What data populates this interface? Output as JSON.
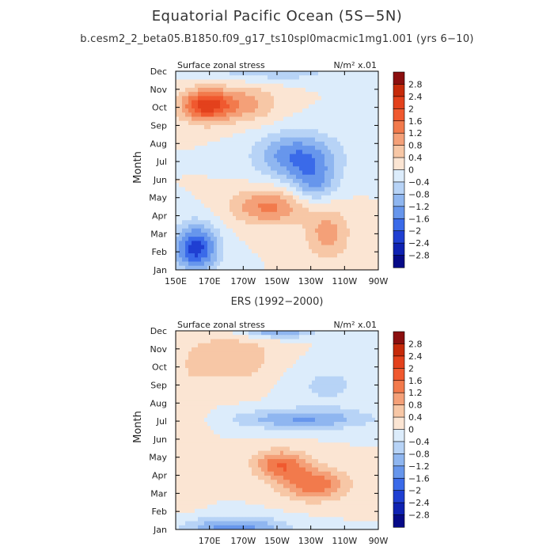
{
  "figure": {
    "title": "Equatorial Pacific Ocean (5S−5N)",
    "subtitle": "b.cesm2_2_beta05.B1850.f09_g17_ts10spl0macmic1mg1.001 (yrs 6−10)"
  },
  "colorbar": {
    "levels": [
      "2.8",
      "2.4",
      "2",
      "1.6",
      "1.2",
      "0.8",
      "0.4",
      "0",
      "−0.4",
      "−0.8",
      "−1.2",
      "−1.6",
      "−2",
      "−2.4",
      "−2.8"
    ],
    "colors": [
      "#8b0f0f",
      "#c62a0a",
      "#e3411c",
      "#f0592f",
      "#f27a4c",
      "#f4a078",
      "#f7c7a6",
      "#fbe5d3",
      "#dcecfb",
      "#b7d3f6",
      "#8fb6f0",
      "#6796ec",
      "#3a6ae9",
      "#1f3fd2",
      "#0f22b2",
      "#060a87"
    ]
  },
  "chart_data": [
    {
      "type": "contour",
      "panel_title": "",
      "left_label": "Surface zonal stress",
      "right_label": "N/m² x.01",
      "xlabel": "",
      "ylabel": "Month",
      "x_ticks": [
        "150E",
        "170E",
        "170W",
        "150W",
        "130W",
        "110W",
        "90W"
      ],
      "y_ticks": [
        "Jan",
        "Feb",
        "Mar",
        "Apr",
        "May",
        "Jun",
        "Jul",
        "Aug",
        "Sep",
        "Oct",
        "Nov",
        "Dec"
      ],
      "xlim": [
        150,
        270
      ],
      "contour_levels": [
        -2.8,
        -2.4,
        -2.0,
        -1.6,
        -1.2,
        -0.8,
        -0.4,
        0,
        0.4,
        0.8,
        1.2,
        1.6,
        2.0,
        2.4,
        2.8
      ],
      "features": [
        {
          "lon": 168,
          "month": 10.1,
          "lon_width": 15,
          "month_width": 0.9,
          "peak": 2.2
        },
        {
          "lon": 193,
          "month": 10.2,
          "lon_width": 18,
          "month_width": 1.0,
          "peak": 0.9
        },
        {
          "lon": 162,
          "month": 2.2,
          "lon_width": 13,
          "month_width": 1.3,
          "peak": -2.2
        },
        {
          "lon": 222,
          "month": 7.3,
          "lon_width": 24,
          "month_width": 1.3,
          "peak": -1.6
        },
        {
          "lon": 232,
          "month": 5.8,
          "lon_width": 13,
          "month_width": 1.1,
          "peak": -1.1
        },
        {
          "lon": 205,
          "month": 11.9,
          "lon_width": 45,
          "month_width": 0.5,
          "peak": -0.6
        },
        {
          "lon": 205,
          "month": 4.5,
          "lon_width": 22,
          "month_width": 1.0,
          "peak": 1.3
        },
        {
          "lon": 240,
          "month": 3.0,
          "lon_width": 13,
          "month_width": 1.4,
          "peak": 1.0
        }
      ]
    },
    {
      "type": "contour",
      "panel_title": "ERS (1992−2000)",
      "left_label": "Surface zonal stress",
      "right_label": "N/m² x.01",
      "xlabel": "",
      "ylabel": "Month",
      "x_ticks": [
        "170E",
        "170W",
        "150W",
        "130W",
        "110W",
        "90W"
      ],
      "y_ticks": [
        "Jan",
        "Feb",
        "Mar",
        "Apr",
        "May",
        "Jun",
        "Jul",
        "Aug",
        "Sep",
        "Oct",
        "Nov",
        "Dec"
      ],
      "xlim": [
        150,
        270
      ],
      "contour_levels": [
        -2.8,
        -2.4,
        -2.0,
        -1.6,
        -1.2,
        -0.8,
        -0.4,
        0,
        0.4,
        0.8,
        1.2,
        1.6,
        2.0,
        2.4,
        2.8
      ],
      "features": [
        {
          "lon": 232,
          "month": 3.5,
          "lon_width": 20,
          "month_width": 0.9,
          "peak": 1.5
        },
        {
          "lon": 212,
          "month": 4.6,
          "lon_width": 16,
          "month_width": 0.8,
          "peak": 1.5
        },
        {
          "lon": 183,
          "month": 10.5,
          "lon_width": 28,
          "month_width": 1.5,
          "peak": 0.7
        },
        {
          "lon": 225,
          "month": 7.1,
          "lon_width": 40,
          "month_width": 0.55,
          "peak": -1.2
        },
        {
          "lon": 185,
          "month": 1.1,
          "lon_width": 30,
          "month_width": 0.6,
          "peak": -1.4
        },
        {
          "lon": 210,
          "month": 12.0,
          "lon_width": 22,
          "month_width": 0.4,
          "peak": -1.3
        },
        {
          "lon": 240,
          "month": 9.0,
          "lon_width": 25,
          "month_width": 1.3,
          "peak": -0.5
        },
        {
          "lon": 158,
          "month": 6.5,
          "lon_width": 10,
          "month_width": 3.5,
          "peak": 0.4
        }
      ]
    }
  ]
}
